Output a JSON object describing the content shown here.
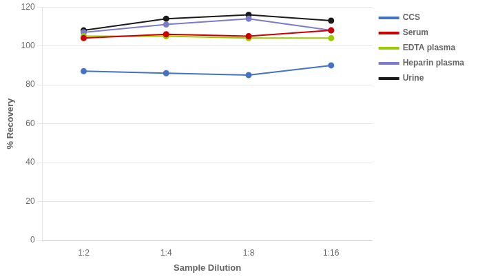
{
  "chart_data": {
    "type": "line",
    "xlabel": "Sample Dilution",
    "ylabel": "% Recovery",
    "categories": [
      "1:2",
      "1:4",
      "1:8",
      "1:16"
    ],
    "series": [
      {
        "name": "CCS",
        "color": "#4472C4",
        "values": [
          87,
          86,
          85,
          90
        ]
      },
      {
        "name": "Serum",
        "color": "#CC0000",
        "values": [
          104,
          106,
          105,
          108
        ]
      },
      {
        "name": "EDTA plasma",
        "color": "#99CC00",
        "values": [
          105,
          105,
          104,
          104
        ]
      },
      {
        "name": "Heparin plasma",
        "color": "#7B7BCB",
        "values": [
          107,
          111,
          114,
          108
        ]
      },
      {
        "name": "Urine",
        "color": "#1A1A1A",
        "values": [
          108,
          114,
          116,
          113
        ]
      }
    ],
    "ylim": [
      0,
      120
    ],
    "yticks": [
      0,
      20,
      40,
      60,
      80,
      100,
      120
    ],
    "grid": true,
    "legend": "right",
    "marker": "circle"
  }
}
